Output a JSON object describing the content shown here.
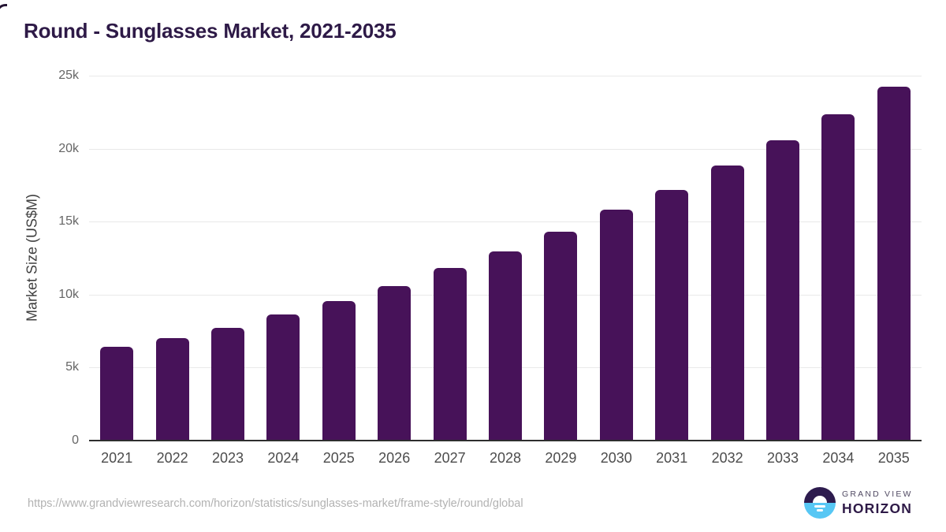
{
  "page": {
    "title": "Round - Sunglasses Market, 2021-2035",
    "source_url": "https://www.grandviewresearch.com/horizon/statistics/sunglasses-market/frame-style/round/global"
  },
  "logo": {
    "icon": "horizon-sunrise-icon",
    "brand_top": "GRAND VIEW",
    "brand_bottom": "HORIZON"
  },
  "colors": {
    "bar": "#471259",
    "title_text": "#2e1a47",
    "gridline": "#e9e9e9",
    "axis_line": "#2e2e2e",
    "x_tick_label": "#4c4c4c",
    "y_tick_label": "#666666",
    "url_text": "#b2b2b2",
    "logo_dark_purple": "#2d1b4e",
    "logo_light_blue": "#57c7f4"
  },
  "chart_data": {
    "type": "bar",
    "title": "Round - Sunglasses Market, 2021-2035",
    "xlabel": "",
    "ylabel": "Market Size (US$M)",
    "categories": [
      "2021",
      "2022",
      "2023",
      "2024",
      "2025",
      "2026",
      "2027",
      "2028",
      "2029",
      "2030",
      "2031",
      "2032",
      "2033",
      "2034",
      "2035"
    ],
    "values": [
      6350,
      6970,
      7660,
      8600,
      9500,
      10510,
      11770,
      12930,
      14280,
      15750,
      17130,
      18780,
      20530,
      22320,
      24200
    ],
    "ylim": [
      0,
      25000
    ],
    "yticks": [
      0,
      5000,
      10000,
      15000,
      20000,
      25000
    ],
    "ytick_labels": [
      "0",
      "5k",
      "10k",
      "15k",
      "20k",
      "25k"
    ],
    "grid": "horizontal",
    "legend": "none",
    "bar_color": "#471259"
  }
}
